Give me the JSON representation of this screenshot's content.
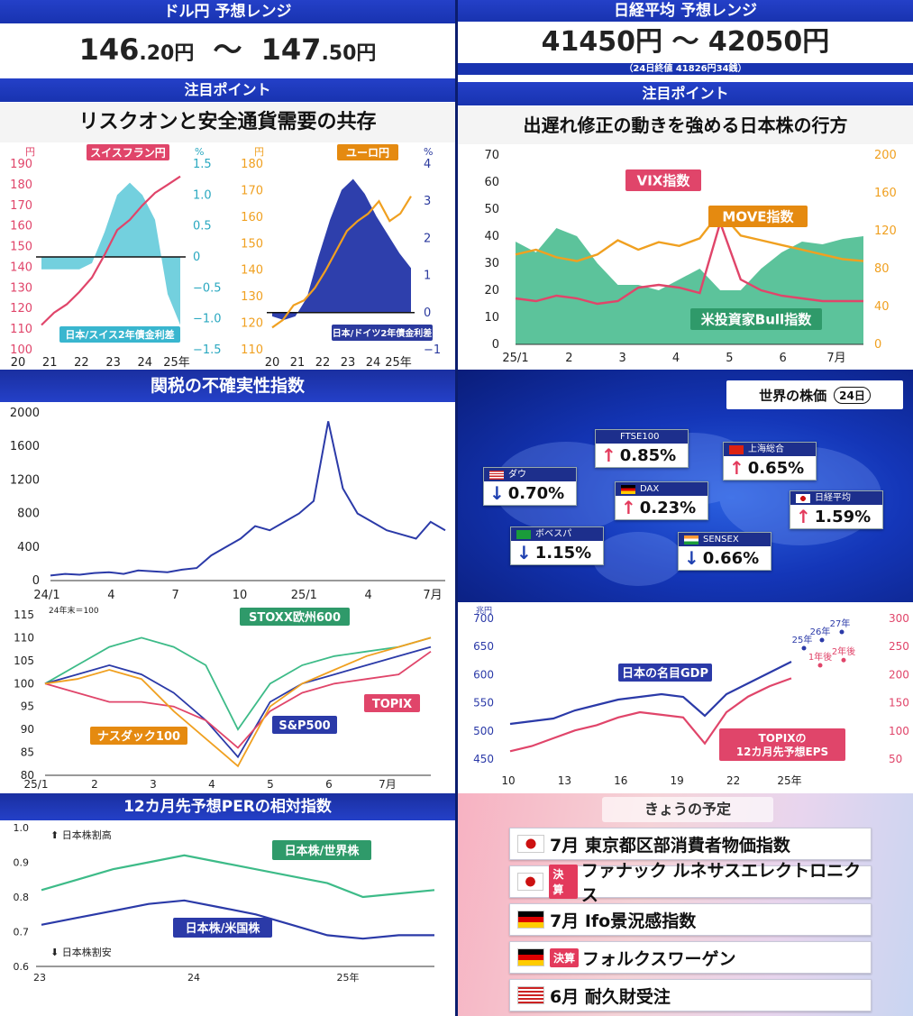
{
  "usdjpy": {
    "header": "ドル円 予想レンジ",
    "low_int": "146",
    "low_dec": ".20円",
    "tilde": "〜",
    "high_int": "147",
    "high_dec": ".50円"
  },
  "nikkei": {
    "header": "日経平均 予想レンジ",
    "range": "41450円 〜 42050円",
    "note": "（24日終値 41826円34銭）"
  },
  "point_label": "注目ポイント",
  "left_point": "リスクオンと安全通貨需要の共存",
  "right_point": "出遅れ修正の動きを強める日本株の行方",
  "tariff_title": "関税の不確実性指数",
  "per_title": "12カ月先予想PERの相対指数",
  "world": {
    "title": "世界の株価",
    "date": "24日"
  },
  "schedule": {
    "title": "きょうの予定",
    "items": [
      {
        "flag": "jp",
        "tag": "",
        "text": "7月 東京都区部消費者物価指数"
      },
      {
        "flag": "jp",
        "tag": "決算",
        "text": "ファナック ルネサスエレクトロニクス"
      },
      {
        "flag": "de",
        "tag": "",
        "text": "7月 Ifo景況感指数"
      },
      {
        "flag": "de",
        "tag": "決算",
        "text": "フォルクスワーゲン"
      },
      {
        "flag": "us",
        "tag": "",
        "text": "6月 耐久財受注"
      }
    ]
  },
  "world_indices": [
    {
      "name": "ダウ",
      "flag": "us",
      "dir": "down",
      "value": "0.70%"
    },
    {
      "name": "FTSE100",
      "flag": "uk",
      "dir": "up",
      "value": "0.85%"
    },
    {
      "name": "上海総合",
      "flag": "cn",
      "dir": "up",
      "value": "0.65%"
    },
    {
      "name": "DAX",
      "flag": "de",
      "dir": "up",
      "value": "0.23%"
    },
    {
      "name": "日経平均",
      "flag": "jp",
      "dir": "up",
      "value": "1.59%"
    },
    {
      "name": "ボベスパ",
      "flag": "br",
      "dir": "down",
      "value": "1.15%"
    },
    {
      "name": "SENSEX",
      "flag": "in",
      "dir": "down",
      "value": "0.66%"
    }
  ],
  "colors": {
    "up": "#e33a5c",
    "down": "#1d3fb0",
    "navy": "#2b3a9e",
    "pink": "#e0456a",
    "orange": "#f0a020",
    "green": "#3fb98a",
    "teal": "#5bc8d8"
  },
  "chart_data": [
    {
      "id": "chf",
      "type": "line+area",
      "label": "スイスフラン円",
      "area_label": "日本/スイス2年債金利差",
      "left_unit": "円",
      "right_unit": "%",
      "left_ticks": [
        "190",
        "180",
        "170",
        "160",
        "150",
        "140",
        "130",
        "120",
        "110",
        "100"
      ],
      "right_ticks": [
        "1.5",
        "1.0",
        "0.5",
        "0",
        "−0.5",
        "−1.0",
        "−1.5"
      ],
      "x_ticks": [
        "20",
        "21",
        "22",
        "23",
        "24",
        "25年"
      ],
      "ylim_left": [
        100,
        190
      ],
      "ylim_right": [
        -1.5,
        1.5
      ],
      "series": [
        {
          "name": "スイスフラン円",
          "axis": "left",
          "values": [
            112,
            118,
            122,
            128,
            135,
            146,
            158,
            163,
            170,
            176,
            180,
            184
          ]
        },
        {
          "name": "日本/スイス2年債金利差",
          "axis": "right",
          "values": [
            -0.2,
            -0.2,
            -0.2,
            -0.2,
            -0.1,
            0.4,
            1.0,
            1.2,
            1.0,
            0.6,
            -0.6,
            -1.1
          ]
        }
      ]
    },
    {
      "id": "eur",
      "type": "line+area",
      "label": "ユーロ円",
      "area_label": "日本/ドイツ2年債金利差",
      "left_unit": "円",
      "right_unit": "%",
      "left_ticks": [
        "180",
        "170",
        "160",
        "150",
        "140",
        "130",
        "120",
        "110"
      ],
      "right_ticks": [
        "4",
        "3",
        "2",
        "1",
        "0",
        "−1"
      ],
      "x_ticks": [
        "20",
        "21",
        "22",
        "23",
        "24",
        "25年"
      ],
      "ylim_left": [
        110,
        185
      ],
      "ylim_right": [
        -1,
        4
      ],
      "series": [
        {
          "name": "ユーロ円",
          "axis": "left",
          "values": [
            119,
            122,
            128,
            130,
            135,
            142,
            150,
            158,
            162,
            165,
            170,
            162,
            165,
            172
          ]
        },
        {
          "name": "日本/ドイツ2年債金利差",
          "axis": "right",
          "values": [
            -0.1,
            -0.2,
            -0.1,
            0.4,
            1.5,
            2.5,
            3.3,
            3.6,
            3.2,
            2.6,
            2.1,
            1.6,
            1.2
          ]
        }
      ]
    },
    {
      "id": "vix",
      "type": "line+area",
      "x_ticks": [
        "25/1",
        "2",
        "3",
        "4",
        "5",
        "6",
        "7月"
      ],
      "left_ticks": [
        "70",
        "60",
        "50",
        "40",
        "30",
        "20",
        "10",
        "0"
      ],
      "right_ticks": [
        "200",
        "160",
        "120",
        "80",
        "40",
        "0"
      ],
      "ylim_left": [
        0,
        70
      ],
      "ylim_right": [
        0,
        200
      ],
      "series": [
        {
          "name": "VIX指数",
          "axis": "left",
          "values": [
            17,
            16,
            18,
            17,
            15,
            16,
            21,
            22,
            21,
            19,
            45,
            24,
            20,
            18,
            17,
            16,
            16,
            16
          ]
        },
        {
          "name": "MOVE指数",
          "axis": "right",
          "values": [
            95,
            100,
            92,
            88,
            95,
            110,
            100,
            108,
            104,
            112,
            140,
            115,
            110,
            105,
            100,
            95,
            90,
            88
          ]
        },
        {
          "name": "米投資家Bull指数",
          "axis": "left",
          "values": [
            38,
            34,
            43,
            40,
            30,
            22,
            22,
            20,
            24,
            28,
            20,
            20,
            28,
            34,
            38,
            37,
            39,
            40
          ]
        }
      ]
    },
    {
      "id": "tariff",
      "type": "line",
      "x_ticks": [
        "24/1",
        "4",
        "7",
        "10",
        "25/1",
        "4",
        "7月"
      ],
      "y_ticks": [
        "2000",
        "1600",
        "1200",
        "800",
        "400",
        "0"
      ],
      "ylim": [
        0,
        2000
      ],
      "series": [
        {
          "name": "関税の不確実性指数",
          "values": [
            60,
            80,
            70,
            90,
            100,
            80,
            120,
            110,
            100,
            130,
            150,
            300,
            400,
            500,
            650,
            600,
            700,
            800,
            950,
            1900,
            1100,
            800,
            700,
            600,
            550,
            500,
            700,
            600
          ]
        }
      ]
    },
    {
      "id": "stocks",
      "type": "line",
      "note": "24年末＝100",
      "x_ticks": [
        "25/1",
        "2",
        "3",
        "4",
        "5",
        "6",
        "7月"
      ],
      "y_ticks": [
        "115",
        "110",
        "105",
        "100",
        "95",
        "90",
        "85",
        "80"
      ],
      "ylim": [
        80,
        115
      ],
      "series": [
        {
          "name": "STOXX欧州600",
          "values": [
            100,
            104,
            108,
            110,
            108,
            104,
            90,
            100,
            104,
            106,
            107,
            108,
            110
          ]
        },
        {
          "name": "S&P500",
          "values": [
            100,
            102,
            104,
            102,
            98,
            92,
            84,
            96,
            100,
            102,
            104,
            106,
            108
          ]
        },
        {
          "name": "TOPIX",
          "values": [
            100,
            98,
            96,
            96,
            95,
            92,
            86,
            94,
            98,
            100,
            101,
            102,
            107
          ]
        },
        {
          "name": "ナスダック100",
          "values": [
            100,
            101,
            103,
            101,
            94,
            88,
            82,
            95,
            100,
            103,
            106,
            108,
            110
          ]
        }
      ]
    },
    {
      "id": "gdp",
      "type": "line",
      "x_ticks": [
        "10",
        "13",
        "16",
        "19",
        "22",
        "25年"
      ],
      "left_unit": "兆円",
      "left_ticks": [
        "700",
        "650",
        "600",
        "550",
        "500",
        "450"
      ],
      "right_ticks": [
        "300",
        "250",
        "200",
        "150",
        "100",
        "50"
      ],
      "ylim_left": [
        440,
        700
      ],
      "ylim_right": [
        30,
        300
      ],
      "series": [
        {
          "name": "日本の名目GDP",
          "axis": "left",
          "values": [
            505,
            510,
            515,
            530,
            540,
            550,
            555,
            560,
            555,
            520,
            560,
            580,
            600,
            620
          ]
        },
        {
          "name": "TOPIXの12カ月先予想EPS",
          "axis": "right",
          "values": [
            45,
            55,
            70,
            85,
            95,
            110,
            120,
            115,
            110,
            60,
            120,
            150,
            170,
            185
          ]
        }
      ],
      "forecasts": [
        {
          "name": "25年",
          "axis": "left",
          "value": 645
        },
        {
          "name": "26年",
          "axis": "left",
          "value": 660
        },
        {
          "name": "27年",
          "axis": "left",
          "value": 675
        },
        {
          "name": "1年後",
          "axis": "right",
          "value": 210
        },
        {
          "name": "2年後",
          "axis": "right",
          "value": 220
        }
      ]
    },
    {
      "id": "per",
      "type": "line",
      "x_ticks": [
        "23",
        "24",
        "25年"
      ],
      "y_ticks": [
        "1.0",
        "0.9",
        "0.8",
        "0.7",
        "0.6"
      ],
      "ylim": [
        0.6,
        1.0
      ],
      "top_note": "日本株割高",
      "bottom_note": "日本株割安",
      "series": [
        {
          "name": "日本株/世界株",
          "values": [
            0.82,
            0.85,
            0.88,
            0.9,
            0.92,
            0.9,
            0.88,
            0.86,
            0.84,
            0.8,
            0.81,
            0.82
          ]
        },
        {
          "name": "日本株/米国株",
          "values": [
            0.72,
            0.74,
            0.76,
            0.78,
            0.79,
            0.77,
            0.75,
            0.72,
            0.69,
            0.68,
            0.69,
            0.69
          ]
        }
      ]
    }
  ]
}
